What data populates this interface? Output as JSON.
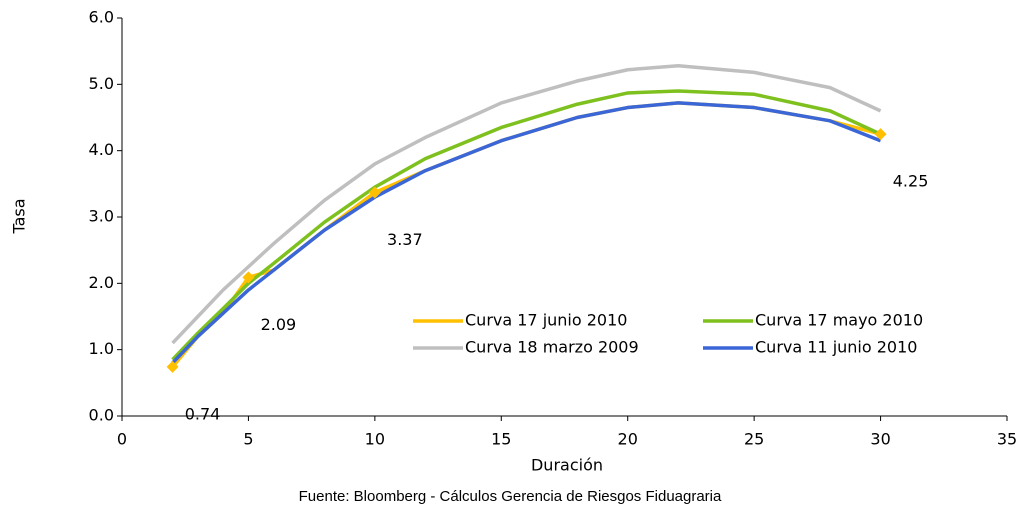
{
  "chart_data": {
    "type": "line",
    "x": [
      2,
      3,
      4,
      5,
      6,
      8,
      10,
      12,
      15,
      18,
      20,
      22,
      25,
      28,
      30
    ],
    "series": [
      {
        "name": "Curva 17 junio 2010",
        "color": "#ffc000",
        "values": [
          0.74,
          1.2,
          1.55,
          2.09,
          2.2,
          2.8,
          3.37,
          3.7,
          4.15,
          4.5,
          4.65,
          4.72,
          4.65,
          4.45,
          4.25
        ],
        "value_labels": [
          "0.74",
          null,
          null,
          "2.09",
          null,
          null,
          "3.37",
          null,
          null,
          null,
          null,
          null,
          null,
          null,
          "4.25"
        ]
      },
      {
        "name": "Curva 17 mayo 2010",
        "color": "#7ec11f",
        "values": [
          0.85,
          1.25,
          1.62,
          2.0,
          2.3,
          2.92,
          3.45,
          3.88,
          4.35,
          4.7,
          4.87,
          4.9,
          4.85,
          4.6,
          4.25
        ]
      },
      {
        "name": "Curva 18 marzo 2009",
        "color": "#bfbfbf",
        "values": [
          1.1,
          1.5,
          1.9,
          2.25,
          2.6,
          3.25,
          3.8,
          4.2,
          4.72,
          5.05,
          5.22,
          5.28,
          5.18,
          4.95,
          4.6
        ]
      },
      {
        "name": "Curva 11 junio 2010",
        "color": "#3a66d8",
        "values": [
          0.8,
          1.2,
          1.55,
          1.9,
          2.2,
          2.8,
          3.3,
          3.7,
          4.15,
          4.5,
          4.65,
          4.72,
          4.65,
          4.45,
          4.15
        ]
      }
    ],
    "x_label": "Duración",
    "y_label": "Tasa",
    "source": "Fuente: Bloomberg - Cálculos Gerencia de Riesgos Fiduagraria",
    "xlim": [
      0,
      35
    ],
    "xticks": [
      0,
      5,
      10,
      15,
      20,
      25,
      30,
      35
    ],
    "ylim": [
      0,
      6
    ],
    "yticks": [
      {
        "value": 0,
        "label": "0.0"
      },
      {
        "value": 1,
        "label": "1.0"
      },
      {
        "value": 2,
        "label": "2.0"
      },
      {
        "value": 3,
        "label": "3.0"
      },
      {
        "value": 4,
        "label": "4.0"
      },
      {
        "value": 5,
        "label": "5.0"
      },
      {
        "value": 6,
        "label": "6.0"
      }
    ]
  }
}
